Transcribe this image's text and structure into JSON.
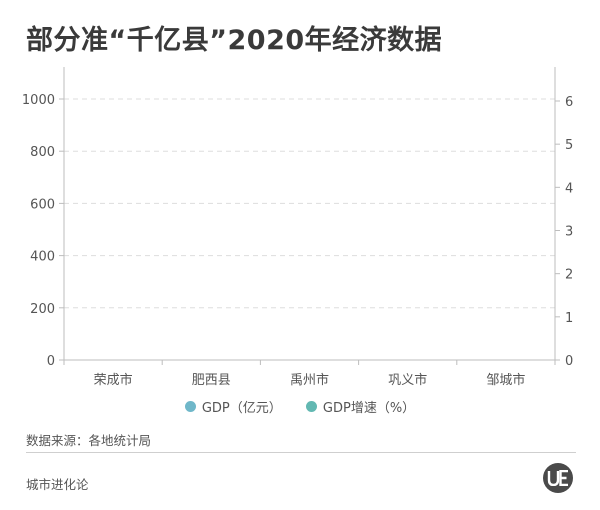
{
  "title": "部分准“千亿县”2020年经济数据",
  "source": "数据来源：各地统计局",
  "brand": "城市进化论",
  "colors": {
    "gdp": "#6fb7c9",
    "growth": "#62b8b2",
    "grid": "#dddddd",
    "axis": "#bdbdbd"
  },
  "chart_data": {
    "type": "bar",
    "title": "部分准“千亿县”2020年经济数据",
    "categories": [
      "荣成市",
      "肥西县",
      "禹州市",
      "巩义市",
      "邹城市"
    ],
    "series": [
      {
        "name": "GDP（亿元）",
        "axis": "left",
        "values": [
          null,
          null,
          null,
          null,
          null
        ]
      },
      {
        "name": "GDP增速（%）",
        "axis": "right",
        "values": [
          null,
          null,
          null,
          null,
          null
        ]
      }
    ],
    "y_left": {
      "ticks": [
        "0",
        "200",
        "400",
        "600",
        "800",
        "1000"
      ],
      "ylim": [
        0,
        1000
      ]
    },
    "y_right": {
      "ticks": [
        "0",
        "1",
        "2",
        "3",
        "4",
        "5",
        "6"
      ],
      "ylim": [
        0,
        6
      ]
    },
    "grid": true,
    "legend": "bottom-center"
  }
}
